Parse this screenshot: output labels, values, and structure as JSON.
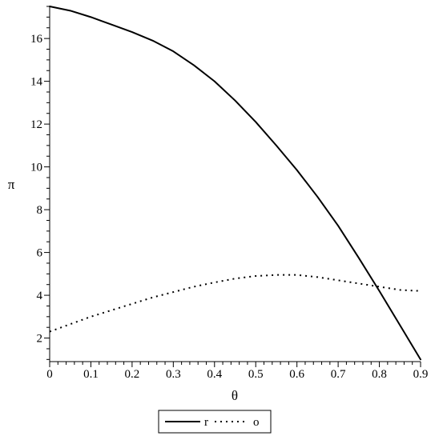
{
  "chart_data": {
    "type": "line",
    "xlabel": "θ",
    "ylabel": "π",
    "xlim": [
      0,
      0.9
    ],
    "ylim": [
      0.9,
      17.5
    ],
    "x_ticks": [
      0,
      0.1,
      0.2,
      0.3,
      0.4,
      0.5,
      0.6,
      0.7,
      0.8,
      0.9
    ],
    "x_tick_labels": [
      "0",
      "0.1",
      "0.2",
      "0.3",
      "0.4",
      "0.5",
      "0.6",
      "0.7",
      "0.8",
      "0.9"
    ],
    "y_ticks": [
      2,
      4,
      6,
      8,
      10,
      12,
      14,
      16
    ],
    "y_tick_labels": [
      "2",
      "4",
      "6",
      "8",
      "10",
      "12",
      "14",
      "16"
    ],
    "grid": false,
    "legend_position": "bottom-center",
    "series": [
      {
        "name": "r",
        "style": "solid",
        "color": "#000000",
        "x": [
          0,
          0.05,
          0.1,
          0.15,
          0.2,
          0.25,
          0.3,
          0.35,
          0.4,
          0.45,
          0.5,
          0.55,
          0.6,
          0.65,
          0.7,
          0.75,
          0.8,
          0.85,
          0.9
        ],
        "y": [
          17.5,
          17.3,
          17.0,
          16.65,
          16.3,
          15.9,
          15.4,
          14.75,
          14.0,
          13.1,
          12.1,
          11.0,
          9.85,
          8.6,
          7.25,
          5.75,
          4.2,
          2.6,
          1.0
        ]
      },
      {
        "name": "o",
        "style": "dotted",
        "color": "#000000",
        "x": [
          0,
          0.05,
          0.1,
          0.15,
          0.2,
          0.25,
          0.3,
          0.35,
          0.4,
          0.45,
          0.5,
          0.55,
          0.6,
          0.65,
          0.7,
          0.75,
          0.8,
          0.85,
          0.9
        ],
        "y": [
          2.3,
          2.65,
          3.0,
          3.3,
          3.6,
          3.9,
          4.15,
          4.4,
          4.6,
          4.78,
          4.9,
          4.95,
          4.95,
          4.85,
          4.7,
          4.55,
          4.4,
          4.25,
          4.2
        ]
      }
    ]
  }
}
